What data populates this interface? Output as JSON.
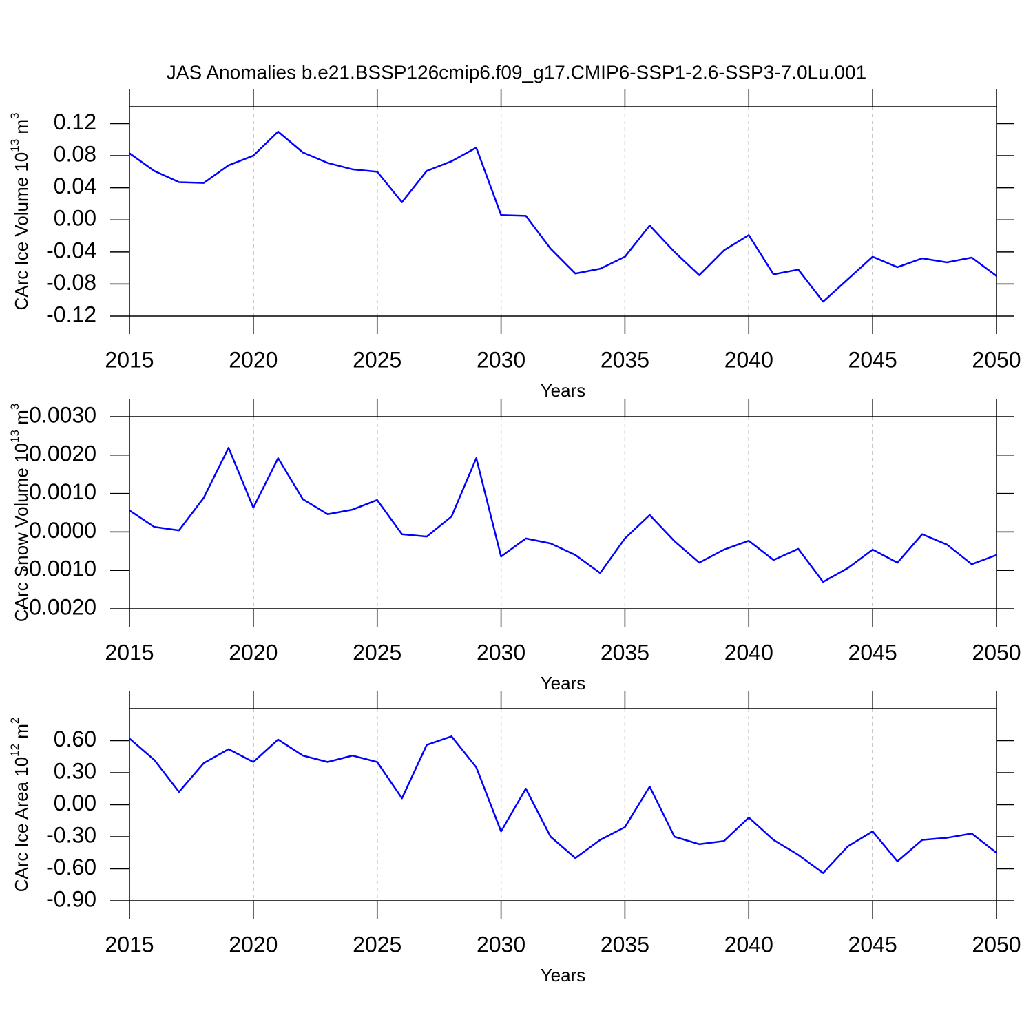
{
  "chart_data": [
    {
      "type": "line",
      "title": "JAS Anomalies b.e21.BSSP126cmip6.f09_g17.CMIP6-SSP1-2.6-SSP3-7.0Lu.001",
      "ylabel": [
        "CArc Ice Volume 10",
        "13",
        " m",
        "3"
      ],
      "xlabel": "Years",
      "x": [
        2015,
        2016,
        2017,
        2018,
        2019,
        2020,
        2021,
        2022,
        2023,
        2024,
        2025,
        2026,
        2027,
        2028,
        2029,
        2030,
        2031,
        2032,
        2033,
        2034,
        2035,
        2036,
        2037,
        2038,
        2039,
        2040,
        2041,
        2042,
        2043,
        2044,
        2045,
        2046,
        2047,
        2048,
        2049,
        2050
      ],
      "series": [
        {
          "color": "#0000ff",
          "values": [
            0.083,
            0.061,
            0.047,
            0.046,
            0.068,
            0.08,
            0.11,
            0.084,
            0.071,
            0.063,
            0.06,
            0.022,
            0.061,
            0.073,
            0.09,
            0.006,
            0.005,
            -0.036,
            -0.067,
            -0.061,
            -0.046,
            -0.007,
            -0.04,
            -0.069,
            -0.038,
            -0.019,
            -0.068,
            -0.062,
            -0.102,
            -0.074,
            -0.046,
            -0.059,
            -0.048,
            -0.053,
            -0.047,
            -0.07
          ]
        }
      ],
      "xlim": [
        2015,
        2050
      ],
      "xticks": [
        2015,
        2020,
        2025,
        2030,
        2035,
        2040,
        2045,
        2050
      ],
      "ylim": [
        -0.12,
        0.141
      ],
      "yticks": [
        {
          "value": -0.12,
          "label": "-0.12"
        },
        {
          "value": -0.08,
          "label": "-0.08"
        },
        {
          "value": -0.04,
          "label": "-0.04"
        },
        {
          "value": 0,
          "label": "0.00"
        },
        {
          "value": 0.04,
          "label": "0.04"
        },
        {
          "value": 0.08,
          "label": "0.08"
        },
        {
          "value": 0.12,
          "label": "0.12"
        }
      ],
      "grid": "x"
    },
    {
      "type": "line",
      "ylabel": [
        "CArc Snow Volume 10",
        "13",
        " m",
        "3"
      ],
      "xlabel": "Years",
      "x": [
        2015,
        2016,
        2017,
        2018,
        2019,
        2020,
        2021,
        2022,
        2023,
        2024,
        2025,
        2026,
        2027,
        2028,
        2029,
        2030,
        2031,
        2032,
        2033,
        2034,
        2035,
        2036,
        2037,
        2038,
        2039,
        2040,
        2041,
        2042,
        2043,
        2044,
        2045,
        2046,
        2047,
        2048,
        2049,
        2050
      ],
      "series": [
        {
          "color": "#0000ff",
          "values": [
            0.00056,
            0.00013,
            4e-05,
            0.00089,
            0.00219,
            0.00063,
            0.00192,
            0.00085,
            0.00046,
            0.00058,
            0.00083,
            -6e-05,
            -0.00012,
            0.0004,
            0.00192,
            -0.00064,
            -0.00017,
            -0.0003,
            -0.0006,
            -0.00107,
            -0.00017,
            0.00044,
            -0.00024,
            -0.0008,
            -0.00046,
            -0.00023,
            -0.00073,
            -0.00044,
            -0.0013,
            -0.00094,
            -0.00046,
            -0.0008,
            -6e-05,
            -0.00033,
            -0.00084,
            -0.0006
          ]
        }
      ],
      "xlim": [
        2015,
        2050
      ],
      "xticks": [
        2015,
        2020,
        2025,
        2030,
        2035,
        2040,
        2045,
        2050
      ],
      "ylim": [
        -0.002,
        0.003
      ],
      "yticks": [
        {
          "value": -0.002,
          "label": "-0.0020"
        },
        {
          "value": -0.001,
          "label": "-0.0010"
        },
        {
          "value": 0,
          "label": "0.0000"
        },
        {
          "value": 0.001,
          "label": "0.0010"
        },
        {
          "value": 0.002,
          "label": "0.0020"
        },
        {
          "value": 0.003,
          "label": "0.0030"
        }
      ],
      "grid": "x"
    },
    {
      "type": "line",
      "ylabel": [
        "CArc Ice Area 10",
        "12",
        " m",
        "2"
      ],
      "xlabel": "Years",
      "x": [
        2015,
        2016,
        2017,
        2018,
        2019,
        2020,
        2021,
        2022,
        2023,
        2024,
        2025,
        2026,
        2027,
        2028,
        2029,
        2030,
        2031,
        2032,
        2033,
        2034,
        2035,
        2036,
        2037,
        2038,
        2039,
        2040,
        2041,
        2042,
        2043,
        2044,
        2045,
        2046,
        2047,
        2048,
        2049,
        2050
      ],
      "series": [
        {
          "color": "#0000ff",
          "values": [
            0.62,
            0.42,
            0.12,
            0.39,
            0.52,
            0.4,
            0.61,
            0.46,
            0.4,
            0.46,
            0.4,
            0.06,
            0.56,
            0.64,
            0.35,
            -0.25,
            0.15,
            -0.3,
            -0.5,
            -0.33,
            -0.21,
            0.17,
            -0.3,
            -0.37,
            -0.34,
            -0.12,
            -0.33,
            -0.47,
            -0.64,
            -0.39,
            -0.25,
            -0.53,
            -0.33,
            -0.31,
            -0.27,
            -0.45
          ]
        }
      ],
      "xlim": [
        2015,
        2050
      ],
      "xticks": [
        2015,
        2020,
        2025,
        2030,
        2035,
        2040,
        2045,
        2050
      ],
      "ylim": [
        -0.9,
        0.9
      ],
      "yticks": [
        {
          "value": -0.9,
          "label": "-0.90"
        },
        {
          "value": -0.6,
          "label": "-0.60"
        },
        {
          "value": -0.3,
          "label": "-0.30"
        },
        {
          "value": 0,
          "label": "0.00"
        },
        {
          "value": 0.3,
          "label": "0.30"
        },
        {
          "value": 0.6,
          "label": "0.60"
        }
      ],
      "grid": "x"
    }
  ]
}
